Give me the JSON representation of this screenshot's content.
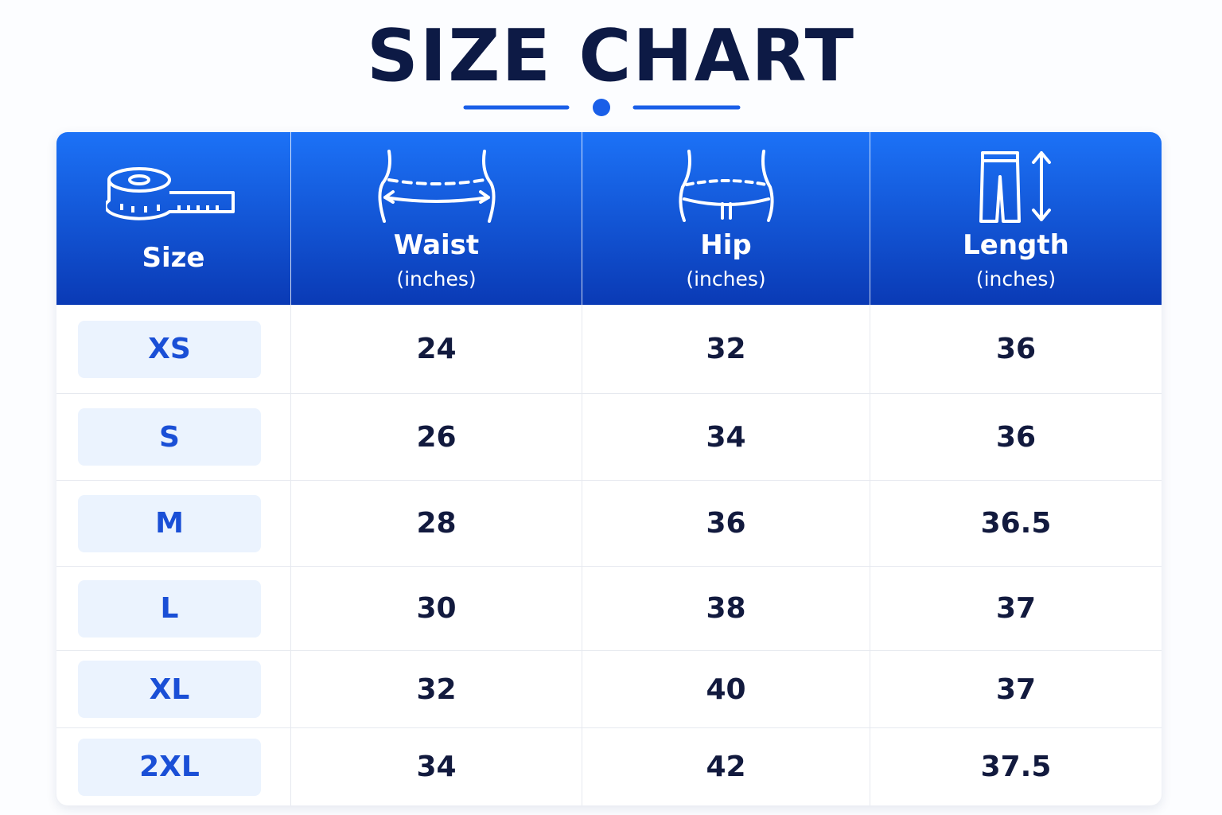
{
  "title": "SIZE CHART",
  "table": {
    "header": [
      {
        "label": "Size"
      },
      {
        "label": "Waist",
        "unit": "(inches)"
      },
      {
        "label": "Hip",
        "unit": "(inches)"
      },
      {
        "label": "Length",
        "unit": "(inches)"
      }
    ],
    "rows": [
      [
        "XS",
        "24",
        "32",
        "36"
      ],
      [
        "S",
        "26",
        "34",
        "36"
      ],
      [
        "M",
        "28",
        "36",
        "36.5"
      ],
      [
        "L",
        "30",
        "38",
        "37"
      ],
      [
        "XL",
        "32",
        "40",
        "37"
      ],
      [
        "2XL",
        "34",
        "42",
        "37.5"
      ]
    ]
  }
}
